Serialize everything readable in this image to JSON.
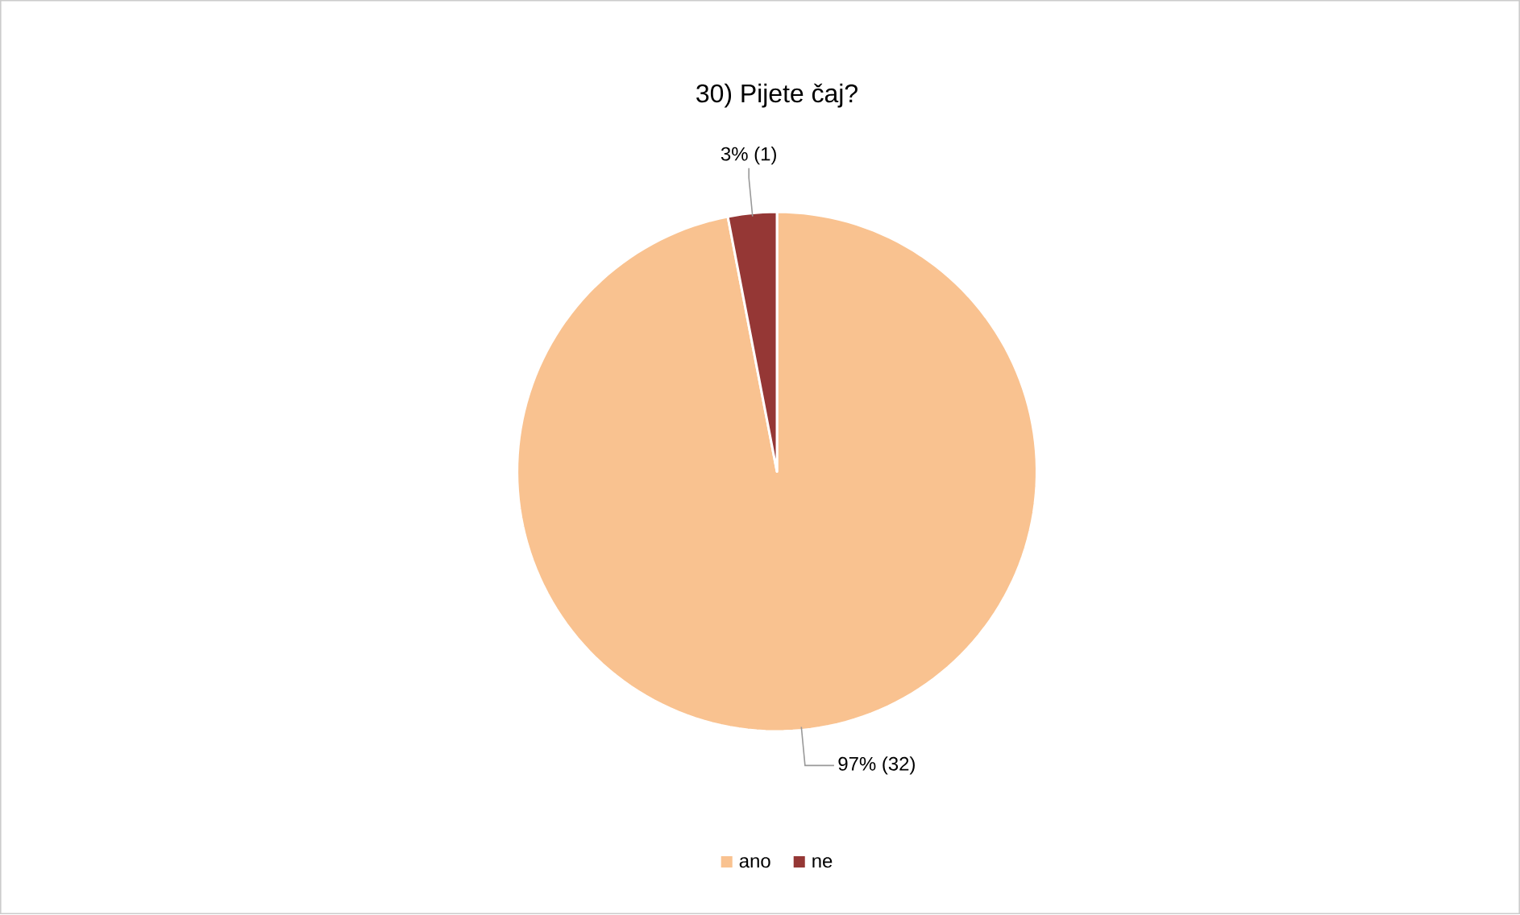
{
  "chart_data": {
    "type": "pie",
    "title": "30) Pijete čaj?",
    "categories": [
      "ano",
      "ne"
    ],
    "values": [
      32,
      1
    ],
    "colors": [
      "#f9c290",
      "#953735"
    ],
    "value_labels": [
      "97% (32)",
      "3% (1)"
    ],
    "legend": "bottom"
  }
}
